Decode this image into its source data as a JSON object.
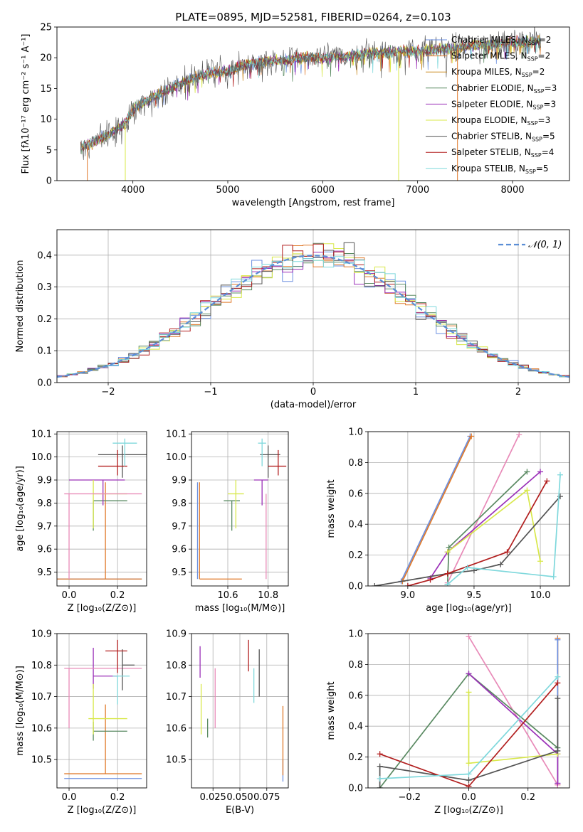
{
  "figure": {
    "title": "PLATE=0895, MJD=52581, FIBERID=0264, z=0.103"
  },
  "colors": {
    "Chabrier MILES": "#6b8fe0",
    "Salpeter MILES": "#e07a2a",
    "Kroupa MILES": "#c98a1e",
    "Chabrier ELODIE": "#5a8a62",
    "Salpeter ELODIE": "#9b30b8",
    "Kroupa ELODIE": "#d8e84a",
    "Chabrier STELIB": "#555555",
    "Salpeter STELIB": "#b21f1f",
    "Kroupa STELIB": "#7fd8dc",
    "pink": "#e88ab8",
    "normal": "#5b8ed6"
  },
  "chart_data": [
    {
      "id": "spectrum",
      "type": "line",
      "title": "PLATE=0895, MJD=52581, FIBERID=0264, z=0.103",
      "xlabel": "wavelength [Angstrom, rest frame]",
      "ylabel": "Flux [fλ10⁻¹⁷ erg cm⁻² s⁻¹ A⁻¹]",
      "xlim": [
        3200,
        8600
      ],
      "ylim": [
        0,
        25
      ],
      "xticks": [
        4000,
        5000,
        6000,
        7000,
        8000
      ],
      "yticks": [
        0,
        5,
        10,
        15,
        20,
        25
      ],
      "grid": false,
      "legend_position": "right",
      "legend": [
        {
          "label": "Chabrier MILES, N",
          "sub": "SSP",
          "suffix": "=2",
          "color": "#6b8fe0"
        },
        {
          "label": "Salpeter MILES, N",
          "sub": "SSP",
          "suffix": "=2",
          "color": "#e07a2a"
        },
        {
          "label": "Kroupa MILES, N",
          "sub": "SSP",
          "suffix": "=2",
          "color": "#c98a1e"
        },
        {
          "label": "Chabrier ELODIE, N",
          "sub": "SSP",
          "suffix": "=3",
          "color": "#5a8a62"
        },
        {
          "label": "Salpeter ELODIE, N",
          "sub": "SSP",
          "suffix": "=3",
          "color": "#9b30b8"
        },
        {
          "label": "Kroupa ELODIE, N",
          "sub": "SSP",
          "suffix": "=3",
          "color": "#d8e84a"
        },
        {
          "label": "Chabrier STELIB, N",
          "sub": "SSP",
          "suffix": "=5",
          "color": "#555555"
        },
        {
          "label": "Salpeter STELIB, N",
          "sub": "SSP",
          "suffix": "=4",
          "color": "#b21f1f"
        },
        {
          "label": "Kroupa STELIB, N",
          "sub": "SSP",
          "suffix": "=5",
          "color": "#7fd8dc"
        }
      ],
      "continuum": {
        "x": [
          3450,
          3600,
          3750,
          3900,
          4000,
          4200,
          4400,
          4600,
          4800,
          5000,
          5200,
          5400,
          5600,
          5800,
          6000,
          6200,
          6500,
          6800,
          7000,
          7300,
          7600,
          8000,
          8300
        ],
        "y": [
          5.3,
          6.3,
          7.5,
          9.0,
          11.5,
          13.5,
          15.0,
          16.5,
          17.5,
          17.8,
          19.0,
          19.4,
          19.6,
          20.0,
          20.0,
          20.2,
          20.8,
          21.0,
          21.0,
          21.4,
          22.0,
          22.5,
          22.8
        ]
      },
      "dips": [
        {
          "x": 3520,
          "y": 0
        },
        {
          "x": 3920,
          "y": 0
        },
        {
          "x": 6800,
          "y": 0
        },
        {
          "x": 7420,
          "y": 0
        }
      ]
    },
    {
      "id": "residuals",
      "type": "histogram",
      "xlabel": "(data-model)/error",
      "ylabel": "Normed distribution",
      "xlim": [
        -2.5,
        2.5
      ],
      "ylim": [
        0,
        0.48
      ],
      "xticks": [
        -2,
        -1,
        0,
        1,
        2
      ],
      "yticks": [
        0.0,
        0.1,
        0.2,
        0.3,
        0.4
      ],
      "grid": true,
      "legend_position": "top-right",
      "legend": [
        {
          "label": "𝒩(0, 1)",
          "style": "dashed",
          "color": "#5b8ed6"
        }
      ],
      "bin_width": 0.1,
      "bin_start": -2.5
    },
    {
      "id": "age_vs_Z",
      "type": "errorbar",
      "xlabel": "Z [log₁₀(Z/Z⊙)]",
      "ylabel": "age  [log₁₀(age/yr)]",
      "xlim": [
        -0.05,
        0.32
      ],
      "ylim": [
        9.44,
        10.11
      ],
      "xticks": [
        0.0,
        0.2
      ],
      "yticks": [
        9.5,
        9.6,
        9.7,
        9.8,
        9.9,
        10.0,
        10.1
      ],
      "grid": true,
      "points": [
        {
          "model": "Chabrier MILES",
          "x": 0.14,
          "xerr": [
            0.27,
            0.16
          ],
          "y": 9.47,
          "yerr": [
            0.0,
            0.0
          ]
        },
        {
          "model": "Salpeter MILES",
          "x": 0.15,
          "xerr": [
            0.3,
            0.15
          ],
          "y": 9.47,
          "yerr": [
            0.0,
            0.42
          ]
        },
        {
          "model": "Chabrier ELODIE",
          "x": 0.1,
          "xerr": [
            0.0,
            0.14
          ],
          "y": 9.81,
          "yerr": [
            0.13,
            0.0
          ]
        },
        {
          "model": "Salpeter ELODIE",
          "x": 0.14,
          "xerr": [
            0.14,
            0.09
          ],
          "y": 9.9,
          "yerr": [
            0.11,
            0.0
          ]
        },
        {
          "model": "Kroupa ELODIE",
          "x": 0.1,
          "xerr": [
            0.0,
            0.14
          ],
          "y": 9.84,
          "yerr": [
            0.15,
            0.06
          ]
        },
        {
          "model": "pink",
          "x": 0.0,
          "xerr": [
            0.02,
            0.3
          ],
          "y": 9.84,
          "yerr": [
            0.37,
            0.0
          ]
        },
        {
          "model": "Chabrier STELIB",
          "x": 0.22,
          "xerr": [
            0.1,
            0.1
          ],
          "y": 10.01,
          "yerr": [
            0.1,
            0.04
          ]
        },
        {
          "model": "Salpeter STELIB",
          "x": 0.2,
          "xerr": [
            0.08,
            0.04
          ],
          "y": 9.96,
          "yerr": [
            0.04,
            0.07
          ]
        },
        {
          "model": "Kroupa STELIB",
          "x": 0.23,
          "xerr": [
            0.05,
            0.05
          ],
          "y": 10.06,
          "yerr": [
            0.1,
            0.02
          ]
        }
      ]
    },
    {
      "id": "age_vs_mass",
      "type": "errorbar",
      "xlabel": "mass [log₁₀(M/M⊙)]",
      "xlim": [
        10.42,
        10.9
      ],
      "ylim": [
        9.44,
        10.11
      ],
      "xticks": [
        10.6,
        10.8
      ],
      "yticks": [
        9.5,
        9.6,
        9.7,
        9.8,
        9.9,
        10.0,
        10.1
      ],
      "grid": true,
      "points": [
        {
          "model": "Chabrier MILES",
          "x": 10.45,
          "xerr": [
            0.0,
            0.0
          ],
          "y": 9.47,
          "yerr": [
            0.0,
            0.42
          ]
        },
        {
          "model": "Salpeter MILES",
          "x": 10.46,
          "xerr": [
            0.0,
            0.21
          ],
          "y": 9.47,
          "yerr": [
            0.0,
            0.42
          ]
        },
        {
          "model": "Chabrier ELODIE",
          "x": 10.62,
          "xerr": [
            0.04,
            0.04
          ],
          "y": 9.81,
          "yerr": [
            0.13,
            0.0
          ]
        },
        {
          "model": "Salpeter ELODIE",
          "x": 10.77,
          "xerr": [
            0.04,
            0.03
          ],
          "y": 9.9,
          "yerr": [
            0.11,
            0.0
          ]
        },
        {
          "model": "Kroupa ELODIE",
          "x": 10.64,
          "xerr": [
            0.04,
            0.04
          ],
          "y": 9.84,
          "yerr": [
            0.15,
            0.06
          ]
        },
        {
          "model": "pink",
          "x": 10.79,
          "xerr": [
            0.0,
            0.0
          ],
          "y": 9.84,
          "yerr": [
            0.37,
            0.0
          ]
        },
        {
          "model": "Chabrier STELIB",
          "x": 10.8,
          "xerr": [
            0.04,
            0.06
          ],
          "y": 10.01,
          "yerr": [
            0.1,
            0.04
          ]
        },
        {
          "model": "Salpeter STELIB",
          "x": 10.85,
          "xerr": [
            0.05,
            0.04
          ],
          "y": 9.96,
          "yerr": [
            0.04,
            0.07
          ]
        },
        {
          "model": "Kroupa STELIB",
          "x": 10.77,
          "xerr": [
            0.02,
            0.02
          ],
          "y": 10.06,
          "yerr": [
            0.1,
            0.02
          ]
        }
      ]
    },
    {
      "id": "weight_vs_age",
      "type": "line",
      "xlabel": "age  [log₁₀(age/yr)]",
      "ylabel": "mass weight",
      "xlim": [
        8.7,
        10.22
      ],
      "ylim": [
        0,
        1.0
      ],
      "xticks": [
        9.0,
        9.5,
        10.0
      ],
      "yticks": [
        0.0,
        0.2,
        0.4,
        0.6,
        0.8,
        1.0
      ],
      "grid": true,
      "series": [
        {
          "model": "Chabrier MILES",
          "x": [
            8.95,
            9.47
          ],
          "y": [
            0.03,
            0.97
          ]
        },
        {
          "model": "Salpeter MILES",
          "x": [
            8.96,
            9.48
          ],
          "y": [
            0.03,
            0.97
          ]
        },
        {
          "model": "pink",
          "x": [
            9.3,
            9.84
          ],
          "y": [
            0.02,
            0.98
          ]
        },
        {
          "model": "Chabrier ELODIE",
          "x": [
            9.3,
            9.31,
            9.9
          ],
          "y": [
            0.01,
            0.25,
            0.74
          ]
        },
        {
          "model": "Salpeter ELODIE",
          "x": [
            9.17,
            9.3,
            10.0
          ],
          "y": [
            0.05,
            0.22,
            0.74
          ]
        },
        {
          "model": "Kroupa ELODIE",
          "x": [
            9.3,
            9.9,
            10.0
          ],
          "y": [
            0.22,
            0.62,
            0.16
          ]
        },
        {
          "model": "Chabrier STELIB",
          "x": [
            8.75,
            9.3,
            9.5,
            9.7,
            10.15
          ],
          "y": [
            0.0,
            0.08,
            0.1,
            0.14,
            0.58
          ]
        },
        {
          "model": "Salpeter STELIB",
          "x": [
            9.0,
            9.17,
            9.3,
            9.75,
            10.05
          ],
          "y": [
            0.0,
            0.04,
            0.08,
            0.22,
            0.68
          ]
        },
        {
          "model": "Kroupa STELIB",
          "x": [
            9.3,
            9.45,
            10.1,
            10.15
          ],
          "y": [
            0.01,
            0.12,
            0.06,
            0.72
          ]
        }
      ]
    },
    {
      "id": "mass_vs_Z",
      "type": "errorbar",
      "xlabel": "Z [log₁₀(Z/Z⊙)]",
      "ylabel": "mass [log₁₀(M/M⊙)]",
      "xlim": [
        -0.05,
        0.32
      ],
      "ylim": [
        10.41,
        10.9
      ],
      "xticks": [
        0.0,
        0.2
      ],
      "yticks": [
        10.5,
        10.6,
        10.7,
        10.8,
        10.9
      ],
      "grid": true,
      "points": [
        {
          "model": "Chabrier MILES",
          "x": 0.15,
          "xerr": [
            0.17,
            0.15
          ],
          "y": 10.44,
          "yerr": [
            0.0,
            0.0
          ]
        },
        {
          "model": "Salpeter MILES",
          "x": 0.15,
          "xerr": [
            0.17,
            0.15
          ],
          "y": 10.455,
          "yerr": [
            0.0,
            0.22
          ]
        },
        {
          "model": "Chabrier ELODIE",
          "x": 0.1,
          "xerr": [
            0.0,
            0.14
          ],
          "y": 10.59,
          "yerr": [
            0.03,
            0.03
          ]
        },
        {
          "model": "Salpeter ELODIE",
          "x": 0.1,
          "xerr": [
            0.0,
            0.1
          ],
          "y": 10.765,
          "yerr": [
            0.04,
            0.09
          ]
        },
        {
          "model": "Kroupa ELODIE",
          "x": 0.1,
          "xerr": [
            0.02,
            0.14
          ],
          "y": 10.63,
          "yerr": [
            0.05,
            0.11
          ]
        },
        {
          "model": "pink",
          "x": 0.0,
          "xerr": [
            0.02,
            0.3
          ],
          "y": 10.79,
          "yerr": [
            0.19,
            0.0
          ]
        },
        {
          "model": "Chabrier STELIB",
          "x": 0.22,
          "xerr": [
            0.0,
            0.05
          ],
          "y": 10.8,
          "yerr": [
            0.08,
            0.05
          ]
        },
        {
          "model": "Salpeter STELIB",
          "x": 0.2,
          "xerr": [
            0.05,
            0.04
          ],
          "y": 10.845,
          "yerr": [
            0.07,
            0.035
          ]
        },
        {
          "model": "Kroupa STELIB",
          "x": 0.2,
          "xerr": [
            0.02,
            0.05
          ],
          "y": 10.765,
          "yerr": [
            0.09,
            0.0
          ]
        }
      ]
    },
    {
      "id": "mass_vs_ebv",
      "type": "errorbar",
      "xlabel": "E(B-V)",
      "xlim": [
        0.005,
        0.095
      ],
      "ylim": [
        10.41,
        10.9
      ],
      "xticks": [
        0.025,
        0.05,
        0.075
      ],
      "xtick_labels": [
        "0.025",
        "0.050",
        "0.075"
      ],
      "yticks": [
        10.5,
        10.6,
        10.7,
        10.8,
        10.9
      ],
      "grid": true,
      "points": [
        {
          "model": "Chabrier MILES",
          "x": 0.09,
          "y": 10.5,
          "yerr": [
            0.07,
            0.0
          ]
        },
        {
          "model": "Salpeter MILES",
          "x": 0.09,
          "y": 10.55,
          "yerr": [
            0.1,
            0.12
          ]
        },
        {
          "model": "Chabrier ELODIE",
          "x": 0.02,
          "y": 10.63,
          "yerr": [
            0.06,
            0.0
          ]
        },
        {
          "model": "Salpeter ELODIE",
          "x": 0.013,
          "y": 10.76,
          "yerr": [
            0.0,
            0.1
          ]
        },
        {
          "model": "Kroupa ELODIE",
          "x": 0.014,
          "y": 10.66,
          "yerr": [
            0.08,
            0.08
          ]
        },
        {
          "model": "pink",
          "x": 0.027,
          "y": 10.7,
          "yerr": [
            0.1,
            0.09
          ]
        },
        {
          "model": "Chabrier STELIB",
          "x": 0.068,
          "y": 10.75,
          "yerr": [
            0.05,
            0.1
          ]
        },
        {
          "model": "Salpeter STELIB",
          "x": 0.058,
          "y": 10.83,
          "yerr": [
            0.05,
            0.05
          ]
        },
        {
          "model": "Kroupa STELIB",
          "x": 0.063,
          "y": 10.74,
          "yerr": [
            0.06,
            0.05
          ]
        }
      ]
    },
    {
      "id": "weight_vs_Z",
      "type": "line",
      "xlabel": "Z [log₁₀(Z/Z⊙)]",
      "ylabel": "mass weight",
      "xlim": [
        -0.34,
        0.34
      ],
      "ylim": [
        0,
        1.0
      ],
      "xticks": [
        -0.2,
        0.0,
        0.2
      ],
      "xtick_labels": [
        "−0.2",
        "0.0",
        "0.2"
      ],
      "yticks": [
        0.0,
        0.2,
        0.4,
        0.6,
        0.8,
        1.0
      ],
      "grid": true,
      "series": [
        {
          "model": "Salpeter MILES",
          "x": [
            0.3,
            0.3
          ],
          "y": [
            0.02,
            0.97
          ]
        },
        {
          "model": "Chabrier MILES",
          "x": [
            0.3,
            0.3
          ],
          "y": [
            0.03,
            0.96
          ]
        },
        {
          "model": "pink",
          "x": [
            0.0,
            0.3
          ],
          "y": [
            0.98,
            0.02
          ]
        },
        {
          "model": "Chabrier ELODIE",
          "x": [
            -0.3,
            0.0,
            0.3
          ],
          "y": [
            0.0,
            0.74,
            0.26
          ]
        },
        {
          "model": "Salpeter ELODIE",
          "x": [
            0.0,
            0.3,
            0.3
          ],
          "y": [
            0.74,
            0.22,
            0.03
          ]
        },
        {
          "model": "Kroupa ELODIE",
          "x": [
            0.0,
            0.0,
            0.3
          ],
          "y": [
            0.62,
            0.16,
            0.22
          ]
        },
        {
          "model": "Chabrier STELIB",
          "x": [
            -0.3,
            -0.3,
            0.0,
            0.3,
            0.3
          ],
          "y": [
            0.0,
            0.14,
            0.05,
            0.24,
            0.58
          ]
        },
        {
          "model": "Salpeter STELIB",
          "x": [
            -0.3,
            0.0,
            0.3
          ],
          "y": [
            0.22,
            0.01,
            0.68
          ]
        },
        {
          "model": "Kroupa STELIB",
          "x": [
            -0.3,
            0.0,
            0.3
          ],
          "y": [
            0.06,
            0.09,
            0.72
          ]
        }
      ]
    }
  ]
}
